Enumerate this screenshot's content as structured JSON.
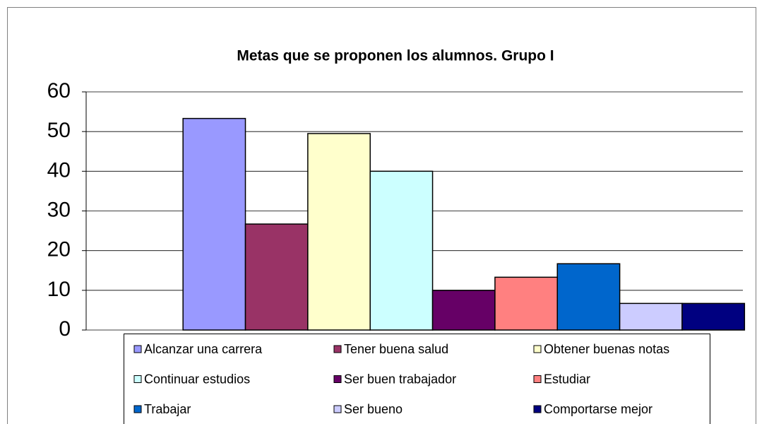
{
  "chart_data": {
    "type": "bar",
    "title": "Metas que se proponen los alumnos. Grupo I",
    "categories": [
      null
    ],
    "series": [
      {
        "name": "Alcanzar una carrera",
        "color": "#9999ff",
        "values": [
          53.3
        ]
      },
      {
        "name": "Tener buena salud",
        "color": "#993366",
        "values": [
          26.7
        ]
      },
      {
        "name": "Obtener buenas notas",
        "color": "#ffffcc",
        "values": [
          49.5
        ]
      },
      {
        "name": "Continuar estudios",
        "color": "#ccffff",
        "values": [
          40
        ]
      },
      {
        "name": "Ser buen trabajador",
        "color": "#660066",
        "values": [
          10
        ]
      },
      {
        "name": "Estudiar",
        "color": "#ff8080",
        "values": [
          13.3
        ]
      },
      {
        "name": "Trabajar",
        "color": "#0066cc",
        "values": [
          16.7
        ]
      },
      {
        "name": "Ser bueno",
        "color": "#ccccff",
        "values": [
          6.7
        ]
      },
      {
        "name": "Comportarse mejor",
        "color": "#000080",
        "values": [
          6.7
        ]
      }
    ],
    "ylim": [
      0,
      60
    ],
    "yticks": [
      0,
      10,
      20,
      30,
      40,
      50,
      60
    ],
    "grid": true,
    "legend": "bottom"
  }
}
